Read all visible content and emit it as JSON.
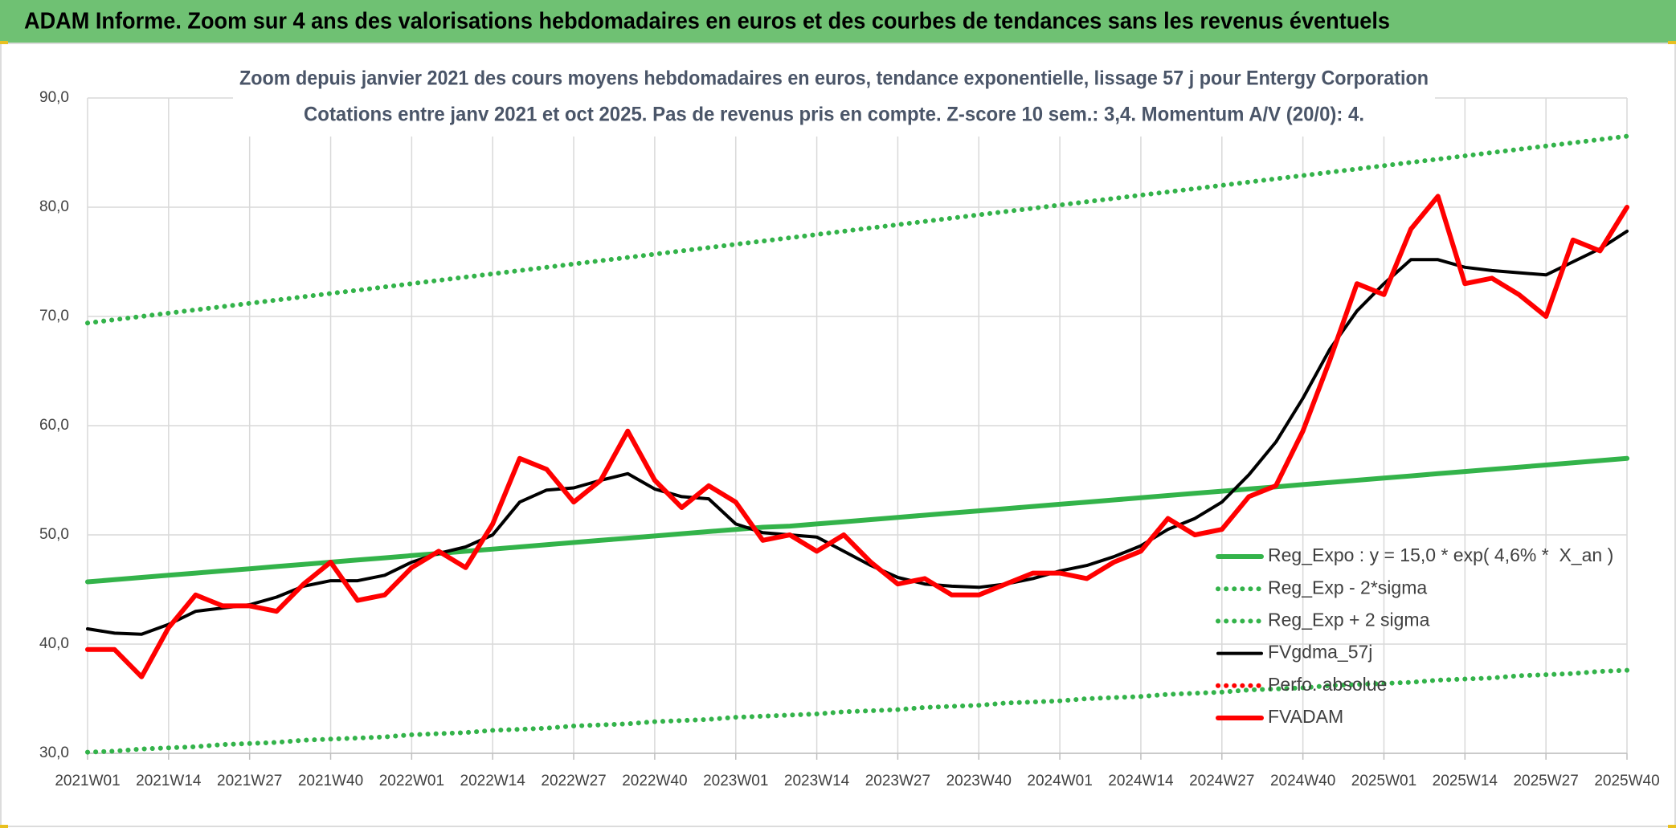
{
  "header": {
    "title": "ADAM Informe. Zoom sur 4 ans des valorisations hebdomadaires en euros et des courbes de tendances sans les revenus éventuels"
  },
  "chart_data": {
    "type": "line",
    "title": "Zoom depuis janvier 2021 des cours moyens hebdomadaires en euros, tendance exponentielle, lissage 57 j pour Entergy Corporation",
    "subtitle": "Cotations entre janv 2021 et oct 2025. Pas de revenus pris en compte. Z-score 10 sem.: 3,4. Momentum A/V (20/0): 4.",
    "categories": [
      "2021W01",
      null,
      null,
      "2021W14",
      null,
      null,
      "2021W27",
      null,
      null,
      "2021W40",
      null,
      null,
      "2022W01",
      null,
      null,
      "2022W14",
      null,
      null,
      "2022W27",
      null,
      null,
      "2022W40",
      null,
      null,
      "2023W01",
      null,
      null,
      "2023W14",
      null,
      null,
      "2023W27",
      null,
      null,
      "2023W40",
      null,
      null,
      "2024W01",
      null,
      null,
      "2024W14",
      null,
      null,
      "2024W27",
      null,
      null,
      "2024W40",
      null,
      null,
      "2025W01",
      null,
      null,
      "2025W14",
      null,
      null,
      "2025W27",
      null,
      null,
      "2025W40"
    ],
    "ylim": [
      30,
      90
    ],
    "yticks": [
      {
        "value": 30,
        "label": "30,0"
      },
      {
        "value": 40,
        "label": "40,0"
      },
      {
        "value": 50,
        "label": "50,0"
      },
      {
        "value": 60,
        "label": "60,0"
      },
      {
        "value": 70,
        "label": "70,0"
      },
      {
        "value": 80,
        "label": "80,0"
      },
      {
        "value": 90,
        "label": "90,0"
      }
    ],
    "grid": true,
    "legend": "lower right",
    "series": [
      {
        "name": "Reg_Expo : y = 15,0 * exp( 4,6% *  X_an )",
        "color": "#33b34a",
        "line_style": "solid",
        "values": [
          45.7,
          45.9,
          46.1,
          46.3,
          46.5,
          46.7,
          46.9,
          47.1,
          47.3,
          47.5,
          47.7,
          47.9,
          48.1,
          48.3,
          48.5,
          48.7,
          48.9,
          49.1,
          49.3,
          49.5,
          49.7,
          49.9,
          50.1,
          50.3,
          50.5,
          50.7,
          50.8,
          51.0,
          51.2,
          51.4,
          51.6,
          51.8,
          52.0,
          52.2,
          52.4,
          52.6,
          52.8,
          53.0,
          53.2,
          53.4,
          53.6,
          53.8,
          54.0,
          54.2,
          54.4,
          54.6,
          54.8,
          55.0,
          55.2,
          55.4,
          55.6,
          55.8,
          56.0,
          56.2,
          56.4,
          56.6,
          56.8,
          57.0
        ]
      },
      {
        "name": "Reg_Exp - 2*sigma",
        "color": "#33b34a",
        "line_style": "dotted",
        "values": [
          30.1,
          30.2,
          30.4,
          30.5,
          30.6,
          30.8,
          30.9,
          31.0,
          31.2,
          31.3,
          31.4,
          31.5,
          31.7,
          31.8,
          31.9,
          32.1,
          32.2,
          32.3,
          32.5,
          32.6,
          32.7,
          32.9,
          33.0,
          33.1,
          33.3,
          33.4,
          33.5,
          33.6,
          33.8,
          33.9,
          34.0,
          34.2,
          34.3,
          34.4,
          34.6,
          34.7,
          34.8,
          35.0,
          35.1,
          35.2,
          35.4,
          35.5,
          35.6,
          35.8,
          35.9,
          36.0,
          36.2,
          36.3,
          36.4,
          36.5,
          36.7,
          36.8,
          36.9,
          37.1,
          37.2,
          37.3,
          37.5,
          37.6
        ]
      },
      {
        "name": "Reg_Exp + 2 sigma",
        "color": "#33b34a",
        "line_style": "dotted",
        "values": [
          69.4,
          69.7,
          70.0,
          70.3,
          70.6,
          70.9,
          71.2,
          71.5,
          71.8,
          72.1,
          72.4,
          72.7,
          73.0,
          73.3,
          73.6,
          73.9,
          74.2,
          74.5,
          74.8,
          75.1,
          75.4,
          75.7,
          76.0,
          76.3,
          76.6,
          76.9,
          77.2,
          77.5,
          77.8,
          78.1,
          78.4,
          78.7,
          79.0,
          79.3,
          79.6,
          79.9,
          80.2,
          80.5,
          80.8,
          81.1,
          81.4,
          81.7,
          82.0,
          82.3,
          82.6,
          82.9,
          83.2,
          83.5,
          83.8,
          84.1,
          84.4,
          84.7,
          85.0,
          85.3,
          85.6,
          85.9,
          86.2,
          86.5
        ]
      },
      {
        "name": "FVgdma_57j",
        "color": "#000000",
        "line_style": "solid",
        "values": [
          41.4,
          41.0,
          40.9,
          41.8,
          43.0,
          43.3,
          43.6,
          44.3,
          45.3,
          45.8,
          45.8,
          46.3,
          47.5,
          48.3,
          48.9,
          50.0,
          53.0,
          54.1,
          54.3,
          55.0,
          55.6,
          54.2,
          53.5,
          53.3,
          51.0,
          50.2,
          50.0,
          49.8,
          48.5,
          47.2,
          46.1,
          45.5,
          45.3,
          45.2,
          45.5,
          46.0,
          46.7,
          47.2,
          48.0,
          49.0,
          50.5,
          51.5,
          53.0,
          55.5,
          58.5,
          62.5,
          67.0,
          70.5,
          73.0,
          75.2,
          75.2,
          74.5,
          74.2,
          74.0,
          73.8,
          75.0,
          76.2,
          77.8
        ]
      },
      {
        "name": "Perfo. absolue",
        "color": "#ff0000",
        "line_style": "dotted",
        "values": [
          null,
          null,
          null,
          null,
          null,
          null,
          null,
          null,
          null,
          null,
          null,
          null,
          null,
          null,
          null,
          null,
          null,
          null,
          null,
          null,
          null,
          null,
          null,
          null,
          null,
          null,
          null,
          null,
          null,
          null,
          null,
          null,
          null,
          null,
          null,
          null,
          null,
          null,
          null,
          null,
          null,
          null,
          null,
          null,
          null,
          null,
          null,
          null,
          null,
          null,
          null,
          null,
          null,
          null,
          null,
          null,
          null,
          null
        ]
      },
      {
        "name": "FVADAM",
        "color": "#ff0000",
        "line_style": "solid",
        "values": [
          39.5,
          39.5,
          37.0,
          41.5,
          44.5,
          43.5,
          43.5,
          43.0,
          45.5,
          47.5,
          44.0,
          44.5,
          47.0,
          48.5,
          47.0,
          51.0,
          57.0,
          56.0,
          53.0,
          55.0,
          59.5,
          55.0,
          52.5,
          54.5,
          53.0,
          49.5,
          50.0,
          48.5,
          50.0,
          47.5,
          45.5,
          46.0,
          44.5,
          44.5,
          45.5,
          46.5,
          46.5,
          46.0,
          47.5,
          48.5,
          51.5,
          50.0,
          50.5,
          53.5,
          54.5,
          59.5,
          66.0,
          73.0,
          72.0,
          78.0,
          81.0,
          73.0,
          73.5,
          72.0,
          70.0,
          77.0,
          76.0,
          80.0
        ]
      }
    ]
  }
}
